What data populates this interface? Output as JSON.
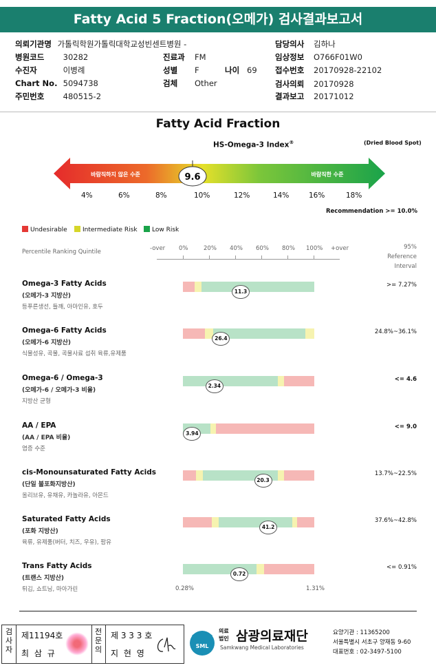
{
  "header": {
    "title": "Fatty Acid 5 Fraction(오메가) 검사결과보고서"
  },
  "info": {
    "hospital_label": "의뢰기관명",
    "hospital": "가톨릭학원가톨릭대학교성빈센트병원 -",
    "doctor_label": "담당의사",
    "doctor": "김하나",
    "code_label": "병원코드",
    "code": "30282",
    "dept_label": "진료과",
    "dept": "FM",
    "chart_label": "임상정보",
    "chart_info": "O766F01W0",
    "patient_label": "수진자",
    "patient": "이병례",
    "sex_label": "성별",
    "sex": "F",
    "age_label": "나이",
    "age": "69",
    "receipt_label": "접수번호",
    "receipt": "20170928-22102",
    "chartno_label": "Chart No.",
    "chartno": "5094738",
    "specimen_label": "검체",
    "specimen": "Other",
    "request_label": "검사의뢰",
    "request": "20170928",
    "id_label": "주민번호",
    "id": "480515-2",
    "report_label": "결과보고",
    "report": "20171012"
  },
  "index": {
    "title": "Fatty Acid Fraction",
    "subtitle": "HS-Omega-3 Index",
    "subtitle_sup": "®",
    "sample_type": "(Dried Blood Spot)",
    "value": "9.6",
    "undesirable_text": "바람직하지 않은 수준",
    "desirable_text": "바람직한 수준",
    "scale": [
      "4%",
      "6%",
      "8%",
      "10%",
      "12%",
      "14%",
      "16%",
      "18%"
    ],
    "recommendation": "Recommendation  >= 10.0%"
  },
  "legend": [
    {
      "label": "Undesirable",
      "color": "#e53935"
    },
    {
      "label": "Intermediate Risk",
      "color": "#d6d62a"
    },
    {
      "label": "Low Risk",
      "color": "#1aa34a"
    }
  ],
  "axis": {
    "quintile_label": "Percentile Ranking Quintile",
    "ticks": [
      "-over",
      "0%",
      "20%",
      "40%",
      "60%",
      "80%",
      "100%",
      "+over"
    ],
    "ref_label_1": "95%",
    "ref_label_2": "Reference Interval"
  },
  "colors": {
    "red": "#f6b8b6",
    "yellow": "#f6f3b0",
    "green": "#b8e2c7",
    "header": "#1a7f6e"
  },
  "chart_data": {
    "type": "table",
    "title": "Fatty Acid Fraction",
    "rows": [
      {
        "name": "Omega-3 Fatty Acids",
        "kor": "(오메가-3 지방산)",
        "food": "등푸른생선, 들깨, 아마인유, 호두",
        "value": "11.3",
        "pos": 0.44,
        "ref": ">= 7.27%",
        "ref_bold": false,
        "segments": [
          [
            "red",
            0,
            0.09
          ],
          [
            "yellow",
            0.09,
            0.14
          ],
          [
            "green",
            0.14,
            1.0
          ]
        ]
      },
      {
        "name": "Omega-6 Fatty Acids",
        "kor": "(오메가-6 지방산)",
        "food": "식물성유, 곡물, 곡물사료 섭취 육류,유제품",
        "value": "26.4",
        "pos": 0.29,
        "ref": "24.8%~36.1%",
        "ref_bold": false,
        "segments": [
          [
            "red",
            0,
            0.17
          ],
          [
            "yellow",
            0.17,
            0.23
          ],
          [
            "green",
            0.23,
            0.93
          ],
          [
            "yellow",
            0.93,
            1.0
          ]
        ]
      },
      {
        "name": "Omega-6 / Omega-3",
        "kor": "(오메가-6 / 오메가-3 비율)",
        "food": "지방산 균형",
        "value": "2.34",
        "pos": 0.24,
        "ref": "<= 4.6",
        "ref_bold": true,
        "segments": [
          [
            "green",
            0,
            0.72
          ],
          [
            "yellow",
            0.72,
            0.77
          ],
          [
            "red",
            0.77,
            1.0
          ]
        ]
      },
      {
        "name": "AA / EPA",
        "kor": "(AA / EPA 비율)",
        "food": "염증 수준",
        "value": "3.94",
        "pos": 0.07,
        "ref": "<= 9.0",
        "ref_bold": true,
        "segments": [
          [
            "green",
            0,
            0.21
          ],
          [
            "yellow",
            0.21,
            0.25
          ],
          [
            "red",
            0.25,
            1.0
          ]
        ]
      },
      {
        "name": "cis-Monounsaturated Fatty Acids",
        "kor": "(단일 불포화지방산)",
        "food": "올리브유, 유채유, 카놀라유, 아몬드",
        "value": "20.3",
        "pos": 0.61,
        "ref": "13.7%~22.5%",
        "ref_bold": false,
        "segments": [
          [
            "red",
            0,
            0.1
          ],
          [
            "yellow",
            0.1,
            0.15
          ],
          [
            "green",
            0.15,
            0.72
          ],
          [
            "yellow",
            0.72,
            0.77
          ],
          [
            "red",
            0.77,
            1.0
          ]
        ]
      },
      {
        "name": "Saturated Fatty Acids",
        "kor": "(포화 지방산)",
        "food": "육류, 유제품(버터, 치즈, 우유), 팜유",
        "value": "41.2",
        "pos": 0.65,
        "ref": "37.6%~42.8%",
        "ref_bold": false,
        "segments": [
          [
            "red",
            0,
            0.22
          ],
          [
            "yellow",
            0.22,
            0.27
          ],
          [
            "green",
            0.27,
            0.83
          ],
          [
            "yellow",
            0.83,
            0.87
          ],
          [
            "red",
            0.87,
            1.0
          ]
        ]
      },
      {
        "name": "Trans Fatty Acids",
        "kor": "(트랜스 지방산)",
        "food": "튀김, 쇼트닝, 마아가린",
        "value": "0.72",
        "pos": 0.43,
        "ref": "<= 0.91%",
        "ref_bold": false,
        "segments": [
          [
            "green",
            0,
            0.56
          ],
          [
            "yellow",
            0.56,
            0.62
          ],
          [
            "red",
            0.62,
            1.0
          ]
        ]
      }
    ],
    "scale_start": "0.28%",
    "scale_end": "1.31%"
  },
  "footer": {
    "label_a": "검사자",
    "license_a": "제11194호",
    "name_a": "최 삼 규",
    "label_b": "전문의",
    "license_b": "제 3 3 3 호",
    "name_b": "지 현 영",
    "org_law": "의료 법인",
    "org_name": "삼광의료재단",
    "org_en": "Samkwang Medical Laboratories",
    "logo": "SML",
    "code": "요양기관 : 11365200",
    "address": "서울특별시 서초구 양재동 9-60",
    "phone": "대표번호 : 02-3497-5100"
  }
}
